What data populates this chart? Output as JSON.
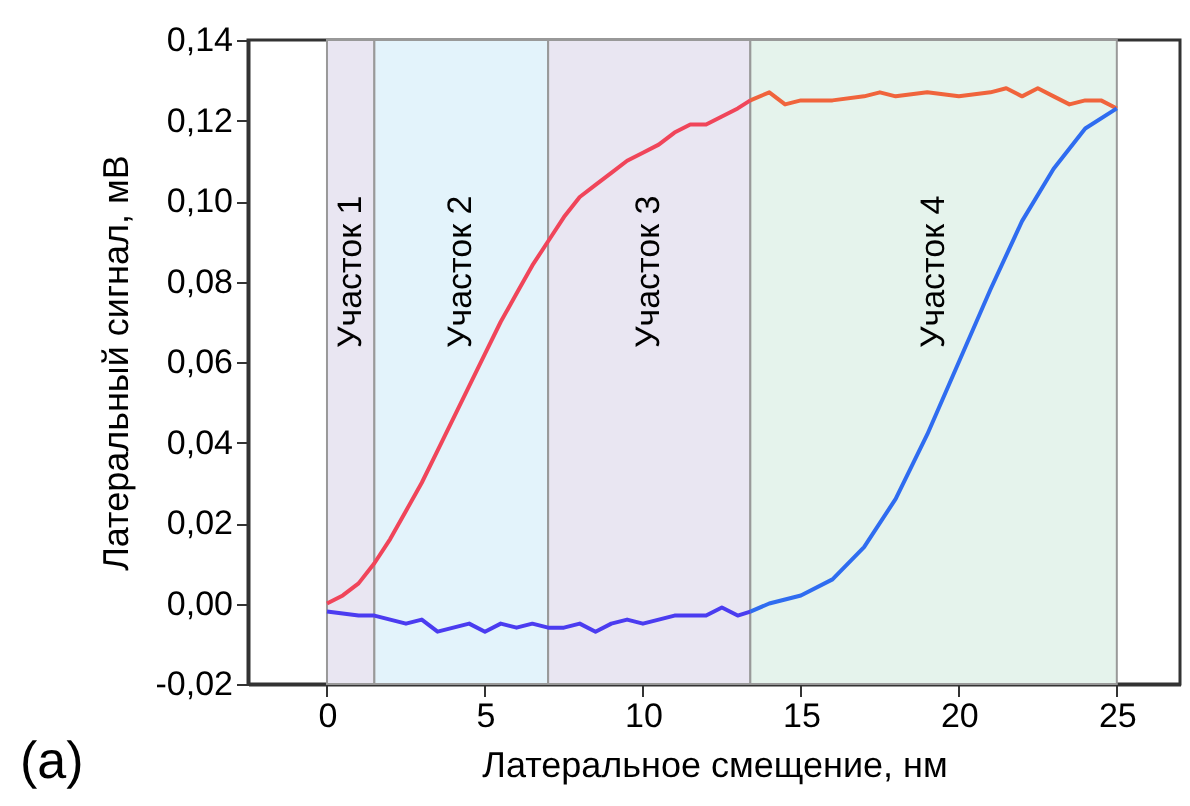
{
  "chart_data": {
    "type": "line",
    "xlabel": "Латеральное смещение, нм",
    "ylabel": "Латеральный сигнал, мВ",
    "xlim": [
      -2.5,
      27
    ],
    "ylim": [
      -0.02,
      0.14
    ],
    "xticks": [
      0,
      5,
      10,
      15,
      20,
      25
    ],
    "yticks": [
      {
        "value": -0.02,
        "label": "-0,02"
      },
      {
        "value": 0,
        "label": "0,00"
      },
      {
        "value": 0.02,
        "label": "0,02"
      },
      {
        "value": 0.04,
        "label": "0,04"
      },
      {
        "value": 0.06,
        "label": "0,06"
      },
      {
        "value": 0.08,
        "label": "0,08"
      },
      {
        "value": 0.1,
        "label": "0,10"
      },
      {
        "value": 0.12,
        "label": "0,12"
      },
      {
        "value": 0.14,
        "label": "0,14"
      }
    ],
    "grid": false,
    "marker": "none",
    "line_style": "solid",
    "bands": [
      {
        "axis": "x",
        "from": 0,
        "to": 1.5,
        "label": "Участок 1",
        "color": "#e9e6f2"
      },
      {
        "axis": "x",
        "from": 1.5,
        "to": 7,
        "label": "Участок 2",
        "color": "#e3f3fb"
      },
      {
        "axis": "x",
        "from": 7,
        "to": 13.4,
        "label": "Участок 3",
        "color": "#e9e6f2"
      },
      {
        "axis": "x",
        "from": 13.4,
        "to": 25,
        "label": "Участок 4",
        "color": "#e5f3ec"
      }
    ],
    "annotations": [
      "(a)"
    ],
    "series": [
      {
        "color": "#f0455a",
        "x": [
          0,
          0.5,
          1,
          1.5,
          2,
          2.5,
          3,
          3.5,
          4,
          4.5,
          5,
          5.5,
          6,
          6.5,
          7,
          7.5,
          8,
          8.5,
          9,
          9.5,
          10,
          10.5,
          11,
          11.5,
          12,
          12.5,
          13,
          13.4
        ],
        "values": [
          0,
          0.002,
          0.005,
          0.01,
          0.016,
          0.023,
          0.03,
          0.038,
          0.046,
          0.054,
          0.062,
          0.07,
          0.077,
          0.084,
          0.09,
          0.096,
          0.101,
          0.104,
          0.107,
          0.11,
          0.112,
          0.114,
          0.117,
          0.119,
          0.119,
          0.121,
          0.123,
          0.125
        ]
      },
      {
        "color": "#f0643c",
        "x": [
          13.4,
          14,
          14.5,
          15,
          16,
          17,
          17.5,
          18,
          19,
          20,
          21,
          21.5,
          22,
          22.5,
          23,
          23.5,
          24,
          24.5,
          25
        ],
        "values": [
          0.125,
          0.127,
          0.124,
          0.125,
          0.125,
          0.126,
          0.127,
          0.126,
          0.127,
          0.126,
          0.127,
          0.128,
          0.126,
          0.128,
          0.126,
          0.124,
          0.125,
          0.125,
          0.123
        ]
      },
      {
        "color": "#4b3cf0",
        "x": [
          0,
          1,
          1.5,
          2,
          2.5,
          3,
          3.5,
          4,
          4.5,
          5,
          5.5,
          6,
          6.5,
          7,
          7.5,
          8,
          8.5,
          9,
          9.5,
          10,
          11,
          12,
          12.5,
          13,
          13.4
        ],
        "values": [
          -0.002,
          -0.003,
          -0.003,
          -0.004,
          -0.005,
          -0.004,
          -0.007,
          -0.006,
          -0.005,
          -0.007,
          -0.005,
          -0.006,
          -0.005,
          -0.006,
          -0.006,
          -0.005,
          -0.007,
          -0.005,
          -0.004,
          -0.005,
          -0.003,
          -0.003,
          -0.001,
          -0.003,
          -0.002
        ]
      },
      {
        "color": "#2f6cf0",
        "x": [
          13.4,
          14,
          15,
          16,
          17,
          18,
          19,
          20,
          21,
          22,
          23,
          24,
          25
        ],
        "values": [
          -0.002,
          0,
          0.002,
          0.006,
          0.014,
          0.026,
          0.042,
          0.06,
          0.078,
          0.095,
          0.108,
          0.118,
          0.123
        ]
      }
    ]
  }
}
